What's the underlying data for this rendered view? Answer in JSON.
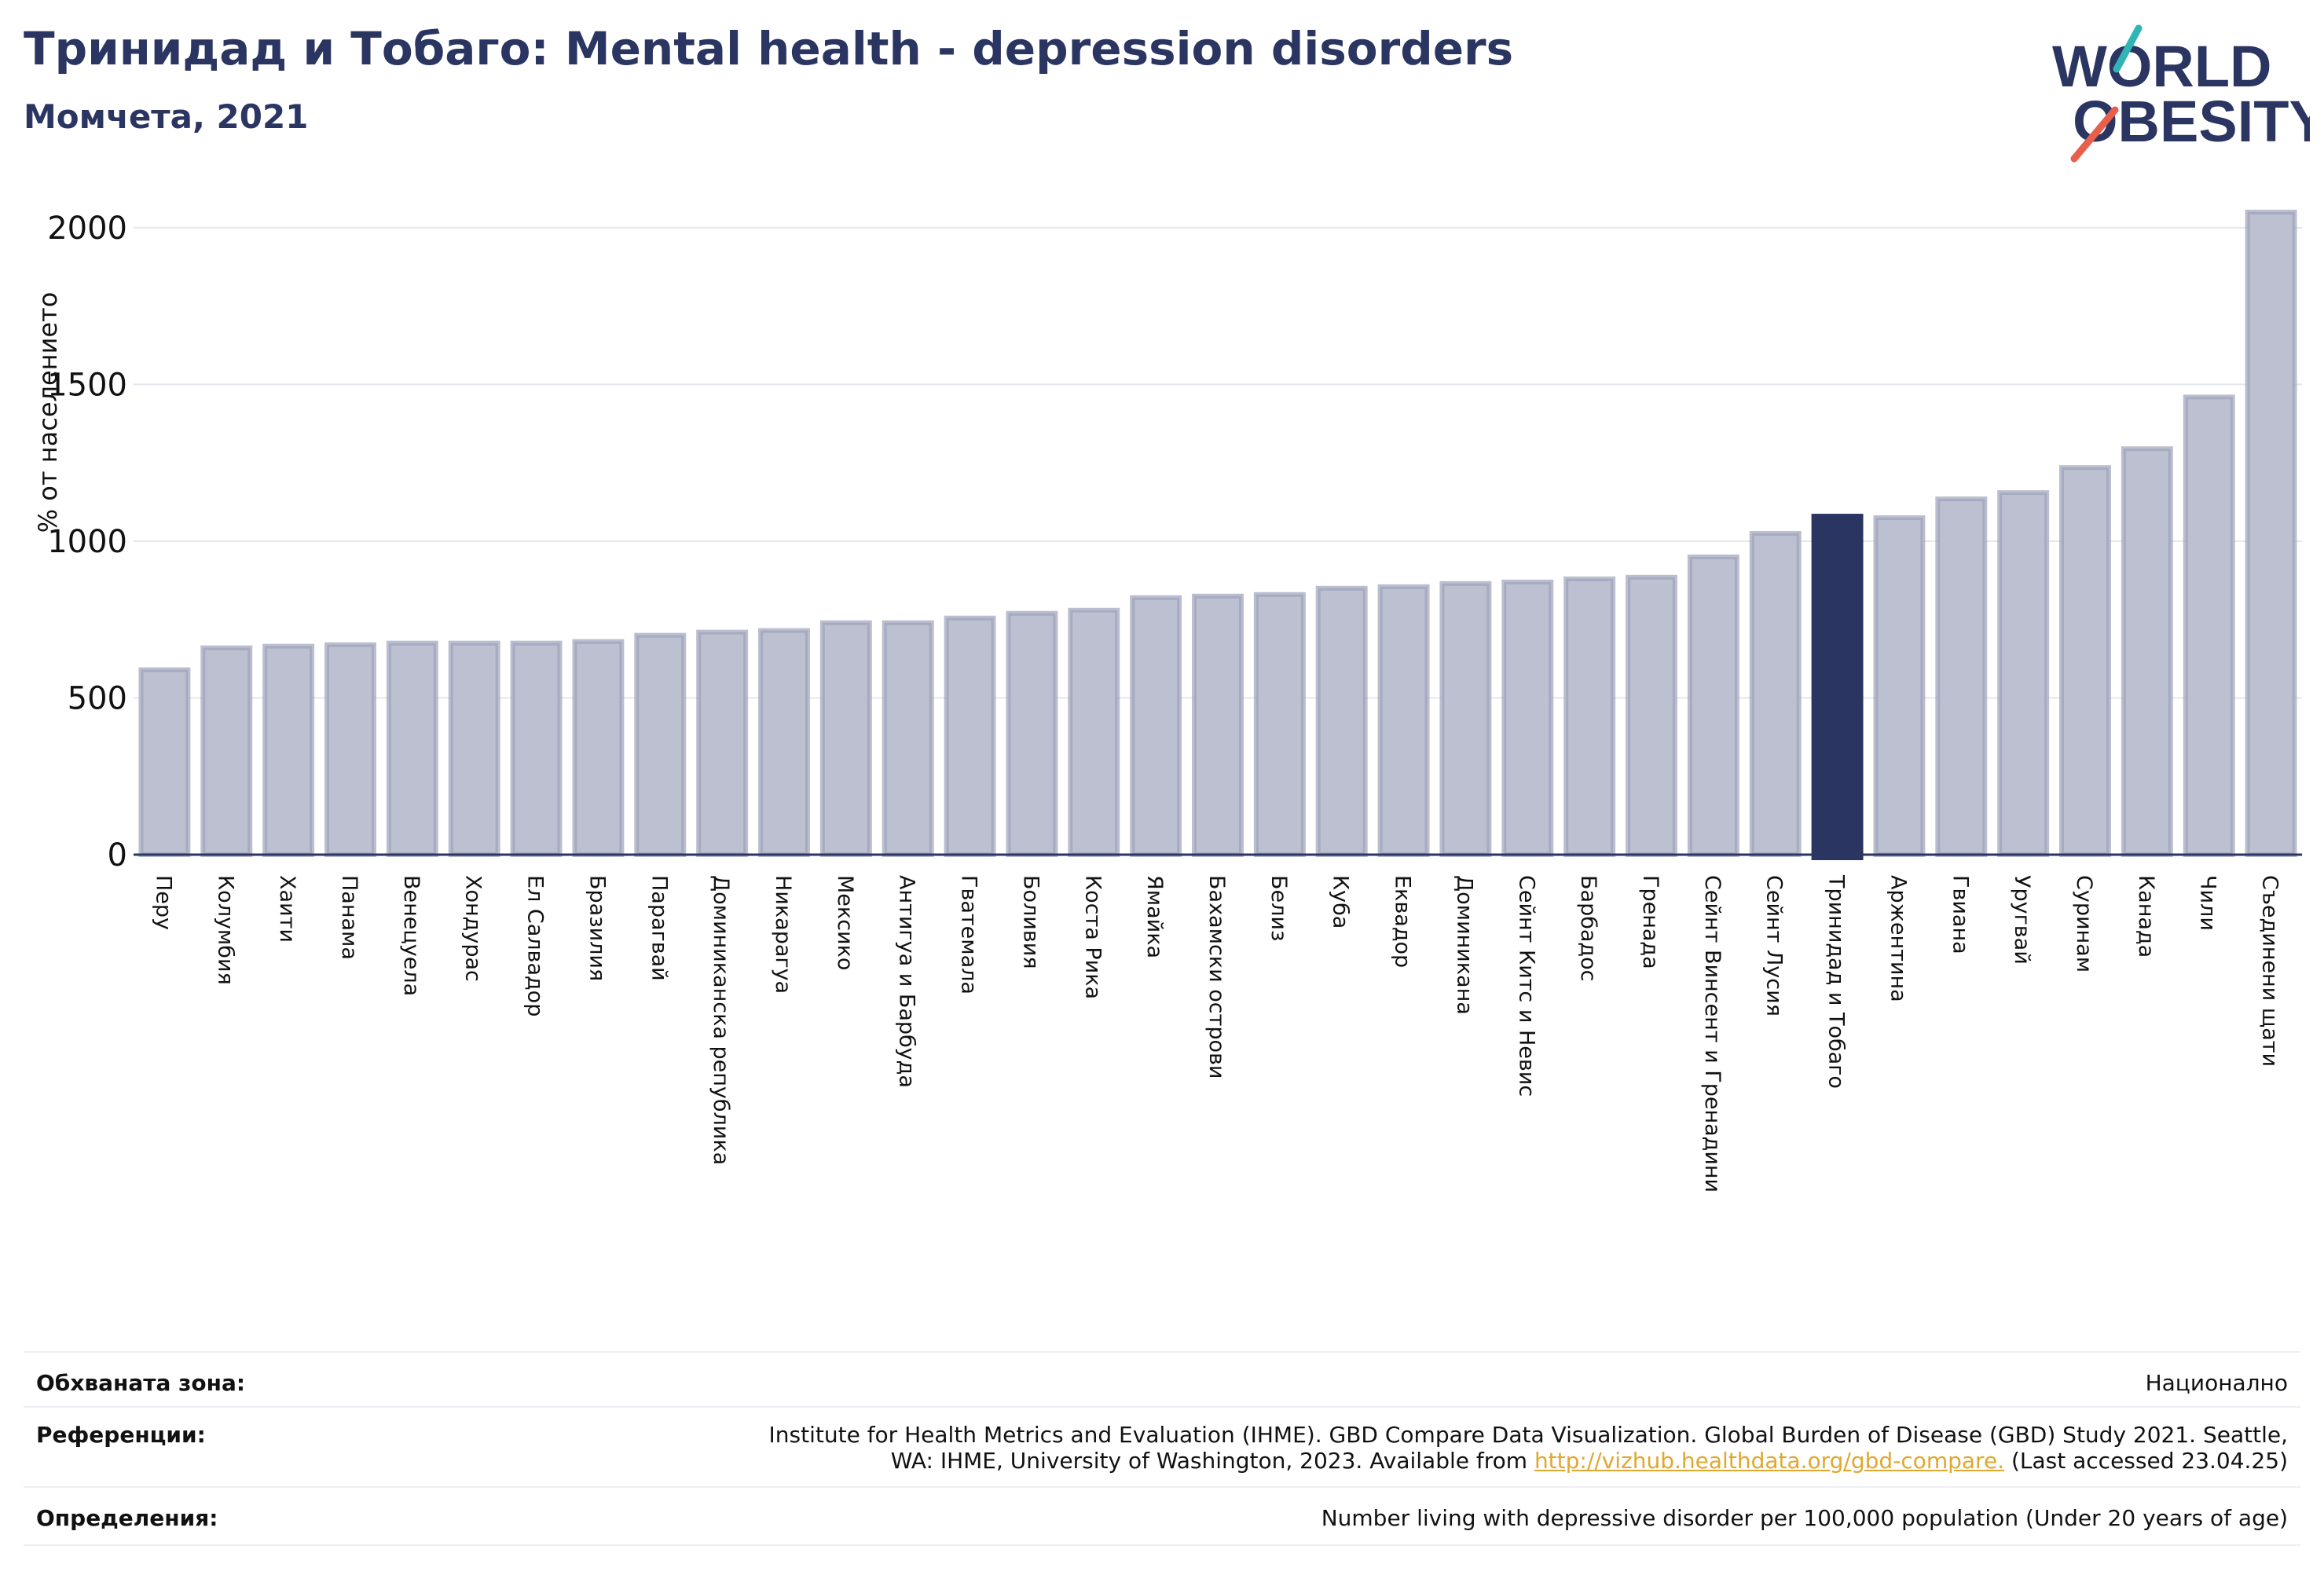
{
  "header": {
    "title": "Тринидад и Тобаго: Mental health - depression disorders",
    "subtitle": "Момчета, 2021",
    "logo_text": "WORLD OBESITY"
  },
  "colors": {
    "bar": "#bcc0d0",
    "bar_edge": "#9ea3bb",
    "highlight": "#2b3562",
    "text": "#2b3562",
    "grid": "#e5e7ee",
    "logo_accent_teal": "#2fb5b4",
    "logo_accent_red": "#e8604c"
  },
  "chart_data": {
    "type": "bar",
    "ylabel": "% от населението",
    "yticks": [
      0,
      500,
      1000,
      1500,
      2000
    ],
    "ylim": [
      0,
      2100
    ],
    "grid": true,
    "highlight": "Тринидад и Тобаго",
    "categories": [
      "Перу",
      "Колумбия",
      "Хаити",
      "Панама",
      "Венецуела",
      "Хондурас",
      "Ел Салвадор",
      "Бразилия",
      "Парагвай",
      "Доминиканска република",
      "Никарагуа",
      "Мексико",
      "Антигуа и Барбуда",
      "Гватемала",
      "Боливия",
      "Коста Рика",
      "Ямайка",
      "Бахамски острови",
      "Белиз",
      "Куба",
      "Еквадор",
      "Доминикана",
      "Сейнт Китс и Невис",
      "Барбадос",
      "Гренада",
      "Сейнт Винсент и Гренадини",
      "Сейнт Лусия",
      "Тринидад и Тобаго",
      "Аржентина",
      "Гвиана",
      "Уругвай",
      "Суринам",
      "Канада",
      "Чили",
      "Съединени щати"
    ],
    "values": [
      590,
      660,
      665,
      670,
      675,
      675,
      675,
      680,
      700,
      710,
      715,
      740,
      740,
      755,
      770,
      780,
      820,
      825,
      830,
      850,
      855,
      865,
      870,
      880,
      885,
      950,
      1025,
      1080,
      1075,
      1135,
      1155,
      1235,
      1295,
      1460,
      2050
    ]
  },
  "footer": {
    "coverage_label": "Обхваната зона:",
    "coverage_value": "Национално",
    "references_label": "Референции:",
    "references_line1": "Institute for Health Metrics and Evaluation (IHME). GBD Compare Data Visualization. Global Burden of Disease (GBD) Study 2021. Seattle,",
    "references_line2_before": "WA: IHME, University of Washington, 2023. Available from ",
    "references_link": "http://vizhub.healthdata.org/gbd-compare.",
    "references_line2_after": " (Last accessed 23.04.25)",
    "definitions_label": "Определения:",
    "definitions_value": "Number living with depressive disorder per 100,000 population (Under 20 years of age)"
  }
}
